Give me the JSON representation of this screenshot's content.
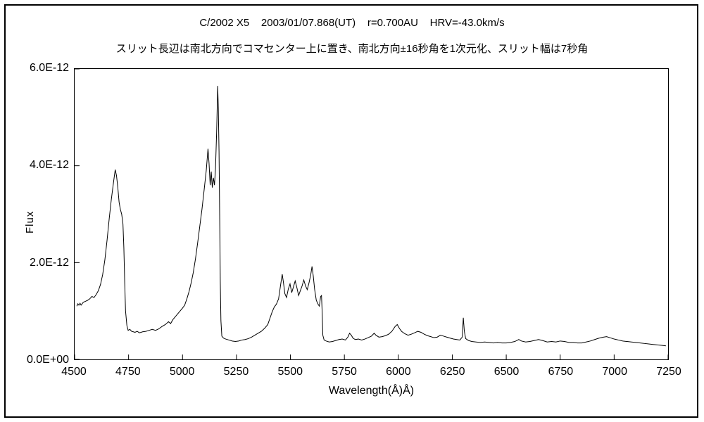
{
  "header": {
    "title": "C/2002 X5    2003/01/07.868(UT)    r=0.700AU    HRV=-43.0km/s",
    "subtitle": "スリット長辺は南北方向でコマセンター上に置き、南北方向±16秒角を1次元化、スリット幅は7秒角"
  },
  "chart_data": {
    "type": "line",
    "title": "C/2002 X5 2003/01/07.868(UT) r=0.700AU HRV=-43.0km/s",
    "subtitle": "スリット長辺は南北方向でコマセンター上に置き、南北方向±16秒角を1次元化、スリット幅は7秒角",
    "xlabel": "Wavelength(Å)Å)",
    "ylabel": "Flux",
    "line_color": "#000000",
    "grid": false,
    "legend": "none",
    "xlim": [
      4500,
      7250
    ],
    "ylim_e12": [
      0,
      6
    ],
    "flux_unit_scale": "1e-12",
    "x_ticks": [
      4500,
      4750,
      5000,
      5250,
      5500,
      5750,
      6000,
      6250,
      6500,
      6750,
      7000,
      7250
    ],
    "y_ticks": [
      {
        "value": 0,
        "label": "0.0E+00"
      },
      {
        "value": 2,
        "label": "2.0E-12"
      },
      {
        "value": 4,
        "label": "4.0E-12"
      },
      {
        "value": 6,
        "label": "6.0E-12"
      }
    ],
    "points": [
      [
        4510,
        1.1
      ],
      [
        4515,
        1.15
      ],
      [
        4520,
        1.12
      ],
      [
        4525,
        1.16
      ],
      [
        4530,
        1.12
      ],
      [
        4540,
        1.18
      ],
      [
        4550,
        1.2
      ],
      [
        4560,
        1.22
      ],
      [
        4570,
        1.25
      ],
      [
        4580,
        1.3
      ],
      [
        4590,
        1.28
      ],
      [
        4600,
        1.34
      ],
      [
        4610,
        1.42
      ],
      [
        4620,
        1.55
      ],
      [
        4630,
        1.75
      ],
      [
        4640,
        2.05
      ],
      [
        4650,
        2.45
      ],
      [
        4660,
        2.9
      ],
      [
        4670,
        3.3
      ],
      [
        4680,
        3.65
      ],
      [
        4688,
        3.92
      ],
      [
        4694,
        3.8
      ],
      [
        4700,
        3.55
      ],
      [
        4706,
        3.25
      ],
      [
        4712,
        3.1
      ],
      [
        4718,
        3.0
      ],
      [
        4724,
        2.8
      ],
      [
        4728,
        2.3
      ],
      [
        4732,
        1.6
      ],
      [
        4736,
        1.0
      ],
      [
        4742,
        0.7
      ],
      [
        4748,
        0.6
      ],
      [
        4756,
        0.62
      ],
      [
        4764,
        0.58
      ],
      [
        4772,
        0.57
      ],
      [
        4780,
        0.56
      ],
      [
        4790,
        0.58
      ],
      [
        4800,
        0.55
      ],
      [
        4815,
        0.57
      ],
      [
        4830,
        0.58
      ],
      [
        4845,
        0.6
      ],
      [
        4860,
        0.62
      ],
      [
        4875,
        0.6
      ],
      [
        4890,
        0.63
      ],
      [
        4905,
        0.68
      ],
      [
        4920,
        0.72
      ],
      [
        4935,
        0.78
      ],
      [
        4945,
        0.74
      ],
      [
        4955,
        0.82
      ],
      [
        4970,
        0.9
      ],
      [
        4985,
        0.98
      ],
      [
        5000,
        1.06
      ],
      [
        5010,
        1.12
      ],
      [
        5020,
        1.25
      ],
      [
        5030,
        1.4
      ],
      [
        5040,
        1.58
      ],
      [
        5050,
        1.8
      ],
      [
        5060,
        2.08
      ],
      [
        5070,
        2.4
      ],
      [
        5080,
        2.75
      ],
      [
        5090,
        3.1
      ],
      [
        5100,
        3.5
      ],
      [
        5110,
        3.9
      ],
      [
        5118,
        4.35
      ],
      [
        5123,
        4.05
      ],
      [
        5128,
        3.6
      ],
      [
        5133,
        3.88
      ],
      [
        5138,
        3.55
      ],
      [
        5143,
        3.75
      ],
      [
        5148,
        3.6
      ],
      [
        5153,
        3.95
      ],
      [
        5158,
        4.7
      ],
      [
        5163,
        5.65
      ],
      [
        5166,
        5.2
      ],
      [
        5169,
        4.3
      ],
      [
        5172,
        3.0
      ],
      [
        5175,
        1.6
      ],
      [
        5178,
        0.8
      ],
      [
        5182,
        0.48
      ],
      [
        5190,
        0.44
      ],
      [
        5200,
        0.42
      ],
      [
        5215,
        0.4
      ],
      [
        5230,
        0.38
      ],
      [
        5245,
        0.37
      ],
      [
        5260,
        0.38
      ],
      [
        5275,
        0.4
      ],
      [
        5290,
        0.41
      ],
      [
        5305,
        0.43
      ],
      [
        5320,
        0.46
      ],
      [
        5335,
        0.5
      ],
      [
        5350,
        0.54
      ],
      [
        5365,
        0.58
      ],
      [
        5380,
        0.64
      ],
      [
        5395,
        0.72
      ],
      [
        5405,
        0.85
      ],
      [
        5415,
        0.98
      ],
      [
        5425,
        1.08
      ],
      [
        5435,
        1.14
      ],
      [
        5445,
        1.25
      ],
      [
        5455,
        1.55
      ],
      [
        5462,
        1.76
      ],
      [
        5468,
        1.58
      ],
      [
        5474,
        1.36
      ],
      [
        5482,
        1.28
      ],
      [
        5490,
        1.45
      ],
      [
        5498,
        1.56
      ],
      [
        5506,
        1.38
      ],
      [
        5514,
        1.5
      ],
      [
        5522,
        1.62
      ],
      [
        5530,
        1.48
      ],
      [
        5538,
        1.32
      ],
      [
        5546,
        1.42
      ],
      [
        5554,
        1.52
      ],
      [
        5562,
        1.64
      ],
      [
        5570,
        1.52
      ],
      [
        5578,
        1.44
      ],
      [
        5586,
        1.58
      ],
      [
        5594,
        1.75
      ],
      [
        5600,
        1.92
      ],
      [
        5606,
        1.72
      ],
      [
        5612,
        1.45
      ],
      [
        5620,
        1.22
      ],
      [
        5628,
        1.14
      ],
      [
        5634,
        1.1
      ],
      [
        5640,
        1.3
      ],
      [
        5644,
        1.32
      ],
      [
        5647,
        1.0
      ],
      [
        5650,
        0.5
      ],
      [
        5656,
        0.4
      ],
      [
        5665,
        0.38
      ],
      [
        5680,
        0.36
      ],
      [
        5695,
        0.37
      ],
      [
        5710,
        0.39
      ],
      [
        5725,
        0.41
      ],
      [
        5740,
        0.42
      ],
      [
        5755,
        0.4
      ],
      [
        5766,
        0.46
      ],
      [
        5774,
        0.54
      ],
      [
        5782,
        0.5
      ],
      [
        5790,
        0.44
      ],
      [
        5800,
        0.41
      ],
      [
        5815,
        0.42
      ],
      [
        5830,
        0.4
      ],
      [
        5845,
        0.42
      ],
      [
        5860,
        0.45
      ],
      [
        5875,
        0.48
      ],
      [
        5888,
        0.54
      ],
      [
        5896,
        0.5
      ],
      [
        5910,
        0.46
      ],
      [
        5925,
        0.47
      ],
      [
        5940,
        0.49
      ],
      [
        5955,
        0.52
      ],
      [
        5970,
        0.58
      ],
      [
        5985,
        0.68
      ],
      [
        5995,
        0.72
      ],
      [
        6005,
        0.64
      ],
      [
        6015,
        0.58
      ],
      [
        6030,
        0.53
      ],
      [
        6045,
        0.5
      ],
      [
        6060,
        0.52
      ],
      [
        6075,
        0.55
      ],
      [
        6090,
        0.58
      ],
      [
        6105,
        0.56
      ],
      [
        6120,
        0.52
      ],
      [
        6135,
        0.49
      ],
      [
        6150,
        0.47
      ],
      [
        6165,
        0.45
      ],
      [
        6180,
        0.46
      ],
      [
        6195,
        0.5
      ],
      [
        6210,
        0.48
      ],
      [
        6225,
        0.46
      ],
      [
        6240,
        0.44
      ],
      [
        6255,
        0.42
      ],
      [
        6270,
        0.41
      ],
      [
        6285,
        0.4
      ],
      [
        6296,
        0.46
      ],
      [
        6301,
        0.86
      ],
      [
        6306,
        0.58
      ],
      [
        6312,
        0.43
      ],
      [
        6325,
        0.39
      ],
      [
        6340,
        0.37
      ],
      [
        6360,
        0.36
      ],
      [
        6380,
        0.35
      ],
      [
        6400,
        0.36
      ],
      [
        6420,
        0.35
      ],
      [
        6440,
        0.34
      ],
      [
        6460,
        0.35
      ],
      [
        6480,
        0.34
      ],
      [
        6500,
        0.34
      ],
      [
        6520,
        0.35
      ],
      [
        6540,
        0.37
      ],
      [
        6558,
        0.41
      ],
      [
        6570,
        0.38
      ],
      [
        6590,
        0.36
      ],
      [
        6610,
        0.37
      ],
      [
        6630,
        0.39
      ],
      [
        6650,
        0.41
      ],
      [
        6668,
        0.39
      ],
      [
        6690,
        0.36
      ],
      [
        6710,
        0.37
      ],
      [
        6730,
        0.36
      ],
      [
        6750,
        0.38
      ],
      [
        6770,
        0.37
      ],
      [
        6790,
        0.35
      ],
      [
        6810,
        0.35
      ],
      [
        6830,
        0.34
      ],
      [
        6850,
        0.34
      ],
      [
        6870,
        0.36
      ],
      [
        6890,
        0.38
      ],
      [
        6910,
        0.41
      ],
      [
        6930,
        0.44
      ],
      [
        6950,
        0.46
      ],
      [
        6965,
        0.47
      ],
      [
        6980,
        0.45
      ],
      [
        7000,
        0.42
      ],
      [
        7020,
        0.4
      ],
      [
        7040,
        0.38
      ],
      [
        7060,
        0.37
      ],
      [
        7080,
        0.36
      ],
      [
        7100,
        0.35
      ],
      [
        7120,
        0.34
      ],
      [
        7140,
        0.33
      ],
      [
        7160,
        0.32
      ],
      [
        7180,
        0.31
      ],
      [
        7200,
        0.3
      ],
      [
        7220,
        0.29
      ],
      [
        7240,
        0.28
      ]
    ]
  }
}
